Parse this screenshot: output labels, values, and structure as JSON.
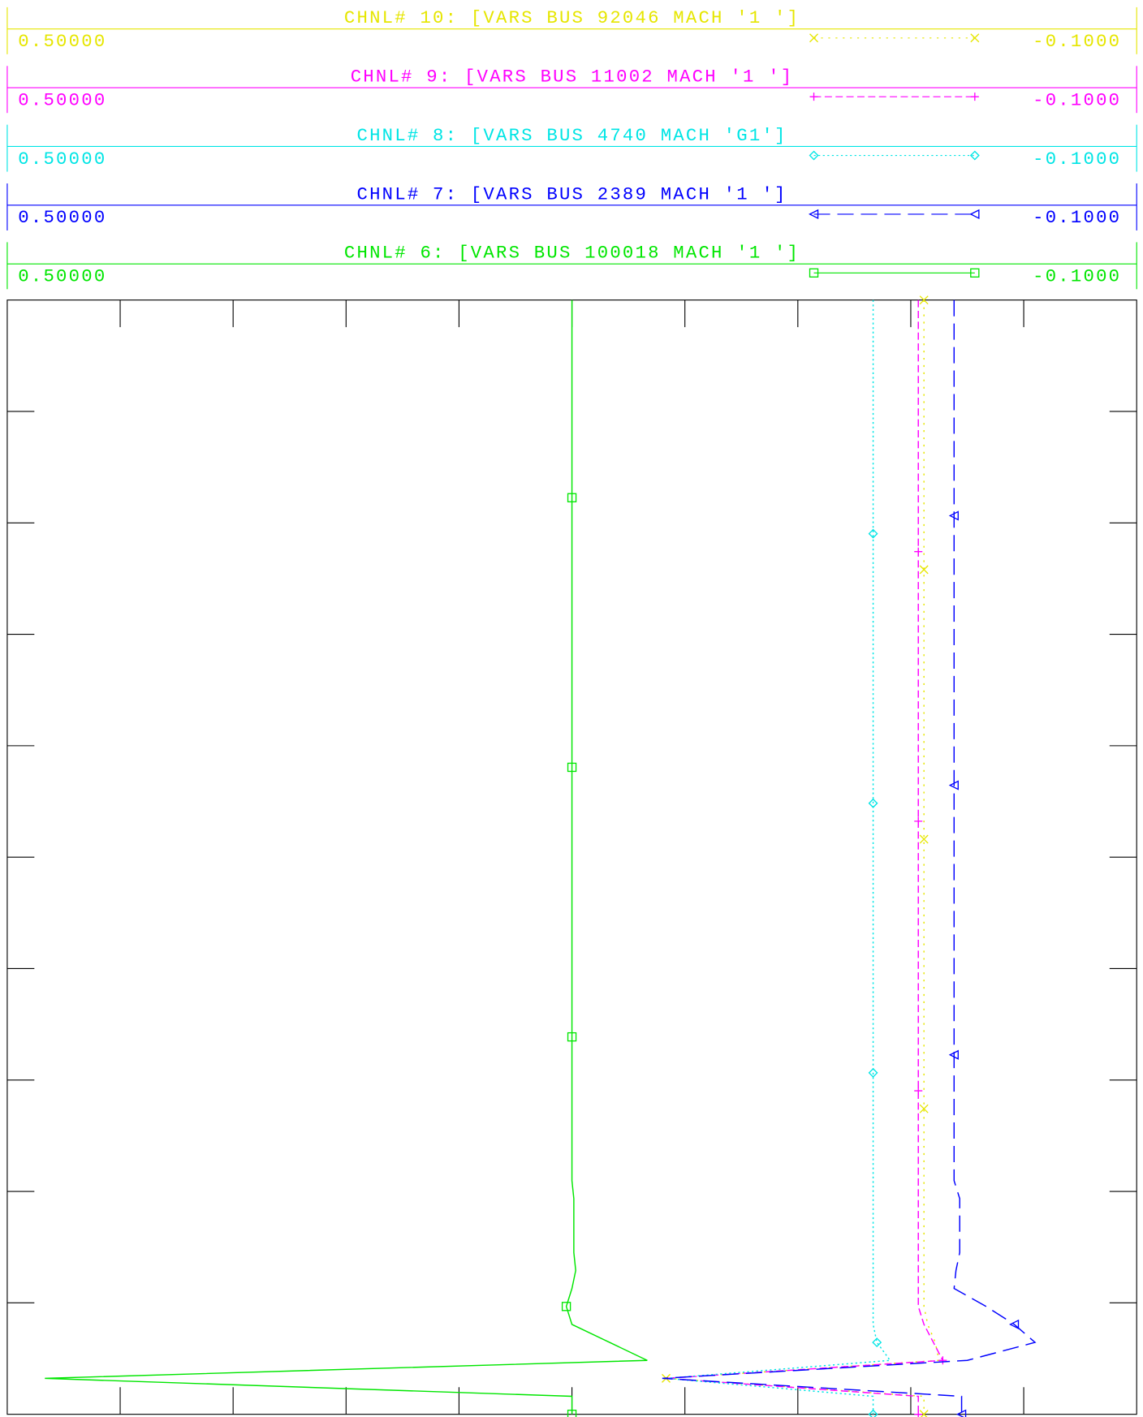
{
  "chart_data": {
    "type": "line",
    "series": [
      {
        "name": "CHNL# 10: [VARS BUS 92046 MACH '1 ']",
        "color": "#e6e600",
        "marker": "x",
        "dash": "2,6",
        "xlim": [
          {
            "value": 0.5,
            "label": "0.50000"
          },
          {
            "value": -0.1,
            "label": "-0.1000"
          }
        ],
        "values": [
          0.013,
          0.013,
          0.013,
          0.013,
          0.013,
          0.013,
          0.013,
          0.013,
          0.013,
          0.013,
          0.013,
          0.013,
          0.013,
          0.013,
          0.013,
          0.013,
          0.013,
          0.013,
          0.013,
          0.013,
          0.013,
          0.013,
          0.013,
          0.013,
          0.013,
          0.013,
          0.013,
          0.013,
          0.013,
          0.013,
          0.013,
          0.013,
          0.013,
          0.013,
          0.013,
          0.013,
          0.013,
          0.013,
          0.013,
          0.013,
          0.013,
          0.013,
          0.013,
          0.013,
          0.013,
          0.013,
          0.013,
          0.013,
          0.013,
          0.013,
          0.013,
          0.013,
          0.013,
          0.013,
          0.013,
          0.013,
          0.013,
          0.011,
          0.007,
          0.005,
          0.15,
          0.013,
          0.013
        ]
      },
      {
        "name": "CHNL# 9: [VARS BUS 11002 MACH '1 ']",
        "color": "#ff00ff",
        "marker": "plus",
        "dash": "8,4",
        "xlim": [
          {
            "value": 0.5,
            "label": "0.50000"
          },
          {
            "value": -0.1,
            "label": "-0.1000"
          }
        ],
        "values": [
          0.016,
          0.016,
          0.016,
          0.016,
          0.016,
          0.016,
          0.016,
          0.016,
          0.016,
          0.016,
          0.016,
          0.016,
          0.016,
          0.016,
          0.016,
          0.016,
          0.016,
          0.016,
          0.016,
          0.016,
          0.016,
          0.016,
          0.016,
          0.016,
          0.016,
          0.016,
          0.016,
          0.016,
          0.016,
          0.016,
          0.016,
          0.016,
          0.016,
          0.016,
          0.016,
          0.016,
          0.016,
          0.016,
          0.016,
          0.016,
          0.016,
          0.016,
          0.016,
          0.016,
          0.016,
          0.016,
          0.016,
          0.016,
          0.016,
          0.016,
          0.016,
          0.016,
          0.016,
          0.016,
          0.016,
          0.016,
          0.016,
          0.013,
          0.008,
          0.003,
          0.15,
          0.016,
          0.016
        ]
      },
      {
        "name": "CHNL# 8: [VARS BUS 4740 MACH 'G1']",
        "color": "#00e5e5",
        "marker": "diamond",
        "dash": "2,3",
        "xlim": [
          {
            "value": 0.5,
            "label": "0.50000"
          },
          {
            "value": -0.1,
            "label": "-0.1000"
          }
        ],
        "values": [
          0.04,
          0.04,
          0.04,
          0.04,
          0.04,
          0.04,
          0.04,
          0.04,
          0.04,
          0.04,
          0.04,
          0.04,
          0.04,
          0.04,
          0.04,
          0.04,
          0.04,
          0.04,
          0.04,
          0.04,
          0.04,
          0.04,
          0.04,
          0.04,
          0.04,
          0.04,
          0.04,
          0.04,
          0.04,
          0.04,
          0.04,
          0.04,
          0.04,
          0.04,
          0.04,
          0.04,
          0.04,
          0.04,
          0.04,
          0.04,
          0.04,
          0.04,
          0.04,
          0.04,
          0.04,
          0.04,
          0.04,
          0.04,
          0.04,
          0.04,
          0.04,
          0.04,
          0.04,
          0.04,
          0.04,
          0.04,
          0.04,
          0.04,
          0.038,
          0.031,
          0.15,
          0.04,
          0.04
        ]
      },
      {
        "name": "CHNL# 7: [VARS BUS 2389 MACH '1 ']",
        "color": "#0000ff",
        "marker": "triangle",
        "dash": "18,8",
        "xlim": [
          {
            "value": 0.5,
            "label": "0.50000"
          },
          {
            "value": -0.1,
            "label": "-0.1000"
          }
        ],
        "values": [
          -0.003,
          -0.003,
          -0.003,
          -0.003,
          -0.003,
          -0.003,
          -0.003,
          -0.003,
          -0.003,
          -0.003,
          -0.003,
          -0.003,
          -0.003,
          -0.003,
          -0.003,
          -0.003,
          -0.003,
          -0.003,
          -0.003,
          -0.003,
          -0.003,
          -0.003,
          -0.003,
          -0.003,
          -0.003,
          -0.003,
          -0.003,
          -0.003,
          -0.003,
          -0.003,
          -0.003,
          -0.003,
          -0.003,
          -0.003,
          -0.003,
          -0.003,
          -0.003,
          -0.003,
          -0.003,
          -0.003,
          -0.003,
          -0.003,
          -0.003,
          -0.003,
          -0.003,
          -0.003,
          -0.003,
          -0.003,
          -0.003,
          -0.003,
          -0.006,
          -0.006,
          -0.006,
          -0.006,
          -0.004,
          -0.003,
          -0.02,
          -0.035,
          -0.046,
          -0.01,
          0.152,
          -0.007,
          -0.007
        ]
      },
      {
        "name": "CHNL# 6: [VARS BUS 100018 MACH '1 ']",
        "color": "#00e600",
        "marker": "square",
        "dash": "none",
        "xlim": [
          {
            "value": 0.5,
            "label": "0.50000"
          },
          {
            "value": -0.1,
            "label": "-0.1000"
          }
        ],
        "values": [
          0.2,
          0.2,
          0.2,
          0.2,
          0.2,
          0.2,
          0.2,
          0.2,
          0.2,
          0.2,
          0.2,
          0.2,
          0.2,
          0.2,
          0.2,
          0.2,
          0.2,
          0.2,
          0.2,
          0.2,
          0.2,
          0.2,
          0.2,
          0.2,
          0.2,
          0.2,
          0.2,
          0.2,
          0.2,
          0.2,
          0.2,
          0.2,
          0.2,
          0.2,
          0.2,
          0.2,
          0.2,
          0.2,
          0.2,
          0.2,
          0.2,
          0.2,
          0.2,
          0.2,
          0.2,
          0.2,
          0.2,
          0.2,
          0.2,
          0.2,
          0.199,
          0.199,
          0.199,
          0.199,
          0.198,
          0.2,
          0.203,
          0.2,
          0.18,
          0.16,
          0.48,
          0.2,
          0.2
        ]
      }
    ]
  }
}
